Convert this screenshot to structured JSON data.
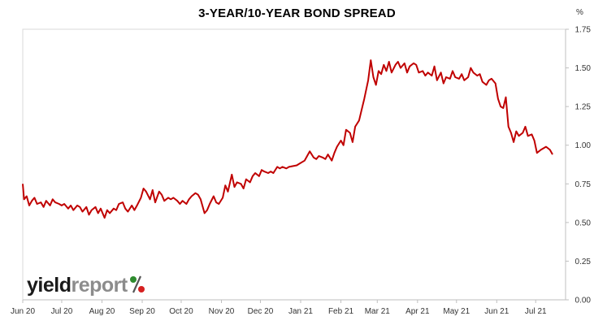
{
  "chart_data": {
    "type": "line",
    "title": "3-YEAR/10-YEAR BOND SPREAD",
    "unit": "%",
    "ylim": [
      0,
      1.75
    ],
    "yticks": [
      "0.00",
      "0.25",
      "0.50",
      "0.75",
      "1.00",
      "1.25",
      "1.50",
      "1.75"
    ],
    "xticks": [
      {
        "label": "Jun 20",
        "date": "2020-06-01"
      },
      {
        "label": "Jul 20",
        "date": "2020-07-01"
      },
      {
        "label": "Aug 20",
        "date": "2020-08-01"
      },
      {
        "label": "Sep 20",
        "date": "2020-09-01"
      },
      {
        "label": "Oct 20",
        "date": "2020-10-01"
      },
      {
        "label": "Nov 20",
        "date": "2020-11-01"
      },
      {
        "label": "Dec 20",
        "date": "2020-12-01"
      },
      {
        "label": "Jan 21",
        "date": "2021-01-01"
      },
      {
        "label": "Feb 21",
        "date": "2021-02-01"
      },
      {
        "label": "Mar 21",
        "date": "2021-03-01"
      },
      {
        "label": "Apr 21",
        "date": "2021-04-01"
      },
      {
        "label": "May 21",
        "date": "2021-05-01"
      },
      {
        "label": "Jun 21",
        "date": "2021-06-01"
      },
      {
        "label": "Jul 21",
        "date": "2021-07-01"
      }
    ],
    "xlim": [
      "2020-06-01",
      "2021-07-24"
    ],
    "grid": false,
    "series": [
      {
        "color": "#c00000",
        "points": [
          [
            "2020-06-01",
            0.75
          ],
          [
            "2020-06-02",
            0.65
          ],
          [
            "2020-06-04",
            0.67
          ],
          [
            "2020-06-06",
            0.61
          ],
          [
            "2020-06-08",
            0.64
          ],
          [
            "2020-06-10",
            0.66
          ],
          [
            "2020-06-12",
            0.62
          ],
          [
            "2020-06-15",
            0.63
          ],
          [
            "2020-06-17",
            0.6
          ],
          [
            "2020-06-19",
            0.64
          ],
          [
            "2020-06-22",
            0.61
          ],
          [
            "2020-06-24",
            0.65
          ],
          [
            "2020-06-26",
            0.63
          ],
          [
            "2020-06-29",
            0.62
          ],
          [
            "2020-07-01",
            0.61
          ],
          [
            "2020-07-03",
            0.62
          ],
          [
            "2020-07-06",
            0.59
          ],
          [
            "2020-07-08",
            0.61
          ],
          [
            "2020-07-10",
            0.58
          ],
          [
            "2020-07-13",
            0.61
          ],
          [
            "2020-07-15",
            0.6
          ],
          [
            "2020-07-17",
            0.57
          ],
          [
            "2020-07-20",
            0.6
          ],
          [
            "2020-07-22",
            0.55
          ],
          [
            "2020-07-24",
            0.58
          ],
          [
            "2020-07-27",
            0.6
          ],
          [
            "2020-07-29",
            0.56
          ],
          [
            "2020-07-31",
            0.59
          ],
          [
            "2020-08-03",
            0.53
          ],
          [
            "2020-08-05",
            0.58
          ],
          [
            "2020-08-07",
            0.56
          ],
          [
            "2020-08-10",
            0.59
          ],
          [
            "2020-08-12",
            0.58
          ],
          [
            "2020-08-14",
            0.62
          ],
          [
            "2020-08-17",
            0.63
          ],
          [
            "2020-08-19",
            0.59
          ],
          [
            "2020-08-21",
            0.57
          ],
          [
            "2020-08-24",
            0.61
          ],
          [
            "2020-08-26",
            0.58
          ],
          [
            "2020-08-28",
            0.61
          ],
          [
            "2020-08-31",
            0.66
          ],
          [
            "2020-09-02",
            0.72
          ],
          [
            "2020-09-04",
            0.7
          ],
          [
            "2020-09-07",
            0.65
          ],
          [
            "2020-09-09",
            0.71
          ],
          [
            "2020-09-11",
            0.63
          ],
          [
            "2020-09-14",
            0.7
          ],
          [
            "2020-09-16",
            0.68
          ],
          [
            "2020-09-18",
            0.64
          ],
          [
            "2020-09-21",
            0.66
          ],
          [
            "2020-09-23",
            0.65
          ],
          [
            "2020-09-25",
            0.66
          ],
          [
            "2020-09-28",
            0.64
          ],
          [
            "2020-09-30",
            0.62
          ],
          [
            "2020-10-02",
            0.64
          ],
          [
            "2020-10-05",
            0.62
          ],
          [
            "2020-10-07",
            0.65
          ],
          [
            "2020-10-09",
            0.67
          ],
          [
            "2020-10-12",
            0.69
          ],
          [
            "2020-10-14",
            0.68
          ],
          [
            "2020-10-16",
            0.65
          ],
          [
            "2020-10-19",
            0.56
          ],
          [
            "2020-10-21",
            0.58
          ],
          [
            "2020-10-23",
            0.62
          ],
          [
            "2020-10-26",
            0.67
          ],
          [
            "2020-10-28",
            0.63
          ],
          [
            "2020-10-30",
            0.62
          ],
          [
            "2020-11-02",
            0.66
          ],
          [
            "2020-11-04",
            0.74
          ],
          [
            "2020-11-06",
            0.7
          ],
          [
            "2020-11-09",
            0.81
          ],
          [
            "2020-11-11",
            0.73
          ],
          [
            "2020-11-13",
            0.76
          ],
          [
            "2020-11-16",
            0.75
          ],
          [
            "2020-11-18",
            0.72
          ],
          [
            "2020-11-20",
            0.78
          ],
          [
            "2020-11-23",
            0.76
          ],
          [
            "2020-11-25",
            0.8
          ],
          [
            "2020-11-27",
            0.82
          ],
          [
            "2020-11-30",
            0.8
          ],
          [
            "2020-12-02",
            0.84
          ],
          [
            "2020-12-04",
            0.83
          ],
          [
            "2020-12-07",
            0.82
          ],
          [
            "2020-12-09",
            0.83
          ],
          [
            "2020-12-11",
            0.82
          ],
          [
            "2020-12-14",
            0.86
          ],
          [
            "2020-12-16",
            0.85
          ],
          [
            "2020-12-18",
            0.86
          ],
          [
            "2020-12-21",
            0.85
          ],
          [
            "2020-12-23",
            0.86
          ],
          [
            "2020-12-29",
            0.87
          ],
          [
            "2020-12-31",
            0.88
          ],
          [
            "2021-01-04",
            0.9
          ],
          [
            "2021-01-06",
            0.93
          ],
          [
            "2021-01-08",
            0.96
          ],
          [
            "2021-01-11",
            0.92
          ],
          [
            "2021-01-13",
            0.91
          ],
          [
            "2021-01-15",
            0.93
          ],
          [
            "2021-01-18",
            0.92
          ],
          [
            "2021-01-20",
            0.91
          ],
          [
            "2021-01-22",
            0.94
          ],
          [
            "2021-01-25",
            0.9
          ],
          [
            "2021-01-27",
            0.95
          ],
          [
            "2021-01-29",
            0.99
          ],
          [
            "2021-02-01",
            1.03
          ],
          [
            "2021-02-03",
            1.0
          ],
          [
            "2021-02-05",
            1.1
          ],
          [
            "2021-02-08",
            1.08
          ],
          [
            "2021-02-10",
            1.02
          ],
          [
            "2021-02-12",
            1.12
          ],
          [
            "2021-02-15",
            1.16
          ],
          [
            "2021-02-17",
            1.23
          ],
          [
            "2021-02-19",
            1.3
          ],
          [
            "2021-02-22",
            1.42
          ],
          [
            "2021-02-24",
            1.55
          ],
          [
            "2021-02-26",
            1.44
          ],
          [
            "2021-02-28",
            1.39
          ],
          [
            "2021-03-02",
            1.48
          ],
          [
            "2021-03-04",
            1.46
          ],
          [
            "2021-03-06",
            1.52
          ],
          [
            "2021-03-08",
            1.48
          ],
          [
            "2021-03-10",
            1.54
          ],
          [
            "2021-03-12",
            1.47
          ],
          [
            "2021-03-15",
            1.52
          ],
          [
            "2021-03-17",
            1.54
          ],
          [
            "2021-03-19",
            1.5
          ],
          [
            "2021-03-22",
            1.53
          ],
          [
            "2021-03-24",
            1.47
          ],
          [
            "2021-03-26",
            1.51
          ],
          [
            "2021-03-29",
            1.53
          ],
          [
            "2021-03-31",
            1.52
          ],
          [
            "2021-04-02",
            1.47
          ],
          [
            "2021-04-05",
            1.48
          ],
          [
            "2021-04-07",
            1.45
          ],
          [
            "2021-04-09",
            1.47
          ],
          [
            "2021-04-12",
            1.45
          ],
          [
            "2021-04-14",
            1.51
          ],
          [
            "2021-04-16",
            1.42
          ],
          [
            "2021-04-19",
            1.47
          ],
          [
            "2021-04-21",
            1.4
          ],
          [
            "2021-04-23",
            1.44
          ],
          [
            "2021-04-26",
            1.43
          ],
          [
            "2021-04-28",
            1.48
          ],
          [
            "2021-04-30",
            1.44
          ],
          [
            "2021-05-03",
            1.43
          ],
          [
            "2021-05-05",
            1.46
          ],
          [
            "2021-05-07",
            1.42
          ],
          [
            "2021-05-10",
            1.44
          ],
          [
            "2021-05-12",
            1.5
          ],
          [
            "2021-05-14",
            1.47
          ],
          [
            "2021-05-17",
            1.45
          ],
          [
            "2021-05-19",
            1.46
          ],
          [
            "2021-05-21",
            1.41
          ],
          [
            "2021-05-24",
            1.39
          ],
          [
            "2021-05-26",
            1.42
          ],
          [
            "2021-05-28",
            1.43
          ],
          [
            "2021-05-31",
            1.4
          ],
          [
            "2021-06-02",
            1.3
          ],
          [
            "2021-06-04",
            1.25
          ],
          [
            "2021-06-06",
            1.24
          ],
          [
            "2021-06-08",
            1.31
          ],
          [
            "2021-06-10",
            1.12
          ],
          [
            "2021-06-12",
            1.08
          ],
          [
            "2021-06-14",
            1.02
          ],
          [
            "2021-06-16",
            1.09
          ],
          [
            "2021-06-18",
            1.06
          ],
          [
            "2021-06-21",
            1.08
          ],
          [
            "2021-06-23",
            1.12
          ],
          [
            "2021-06-25",
            1.06
          ],
          [
            "2021-06-28",
            1.07
          ],
          [
            "2021-06-30",
            1.03
          ],
          [
            "2021-07-02",
            0.95
          ],
          [
            "2021-07-05",
            0.97
          ],
          [
            "2021-07-07",
            0.98
          ],
          [
            "2021-07-09",
            0.99
          ],
          [
            "2021-07-12",
            0.97
          ],
          [
            "2021-07-14",
            0.94
          ]
        ]
      }
    ]
  },
  "logo": {
    "word1": "yield",
    "word2": "report",
    "symbol": "%"
  }
}
